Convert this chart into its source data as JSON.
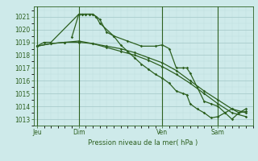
{
  "bg_color": "#ceeaea",
  "grid_color_major": "#a8cccc",
  "grid_color_minor": "#bcdede",
  "line_color": "#2d6020",
  "title": "Pression niveau de la mer( hPa )",
  "ylim": [
    1012.5,
    1021.8
  ],
  "yticks": [
    1013,
    1014,
    1015,
    1016,
    1017,
    1018,
    1019,
    1020,
    1021
  ],
  "day_labels": [
    "Jeu",
    "Dim",
    "Ven",
    "Sam"
  ],
  "series": [
    {
      "t": [
        0,
        2,
        4,
        12,
        13,
        14,
        15,
        16,
        17,
        18,
        22,
        26,
        30,
        34,
        36,
        38,
        40,
        42,
        43,
        44,
        46,
        48,
        50,
        52,
        54,
        56,
        58,
        60
      ],
      "y": [
        1018.7,
        1019.0,
        1019.0,
        1021.2,
        1021.2,
        1021.2,
        1021.2,
        1021.2,
        1021.0,
        1020.5,
        1019.5,
        1019.1,
        1018.7,
        1018.7,
        1018.8,
        1018.5,
        1017.0,
        1017.0,
        1017.0,
        1016.6,
        1015.5,
        1014.4,
        1014.2,
        1014.0,
        1013.5,
        1013.0,
        1013.5,
        1013.8
      ]
    },
    {
      "t": [
        0,
        4,
        8,
        12,
        16,
        20,
        24,
        28,
        32,
        36,
        40,
        44,
        48,
        52,
        56,
        60
      ],
      "y": [
        1018.7,
        1018.9,
        1019.0,
        1019.0,
        1018.9,
        1018.7,
        1018.5,
        1018.2,
        1017.8,
        1017.4,
        1016.8,
        1016.0,
        1015.2,
        1014.5,
        1013.8,
        1013.5
      ]
    },
    {
      "t": [
        0,
        4,
        8,
        12,
        16,
        20,
        24,
        28,
        32,
        36,
        40,
        44,
        48,
        52,
        56,
        60
      ],
      "y": [
        1018.7,
        1018.9,
        1019.0,
        1019.1,
        1018.9,
        1018.6,
        1018.3,
        1018.0,
        1017.6,
        1017.1,
        1016.5,
        1015.8,
        1015.0,
        1014.2,
        1013.5,
        1013.2
      ]
    },
    {
      "t": [
        10,
        12,
        13,
        14,
        15,
        16,
        17,
        18,
        20,
        22,
        24,
        26,
        28,
        30,
        32,
        34,
        36,
        38,
        40,
        42,
        43,
        44,
        46,
        48,
        50,
        52,
        54,
        56,
        58,
        60
      ],
      "y": [
        1019.4,
        1021.2,
        1021.2,
        1021.2,
        1021.2,
        1021.2,
        1021.0,
        1020.8,
        1019.8,
        1019.5,
        1018.8,
        1018.3,
        1017.8,
        1017.3,
        1016.9,
        1016.5,
        1016.2,
        1015.8,
        1015.2,
        1015.0,
        1014.9,
        1014.2,
        1013.8,
        1013.5,
        1013.1,
        1013.2,
        1013.5,
        1013.8,
        1013.5,
        1013.6
      ]
    }
  ]
}
